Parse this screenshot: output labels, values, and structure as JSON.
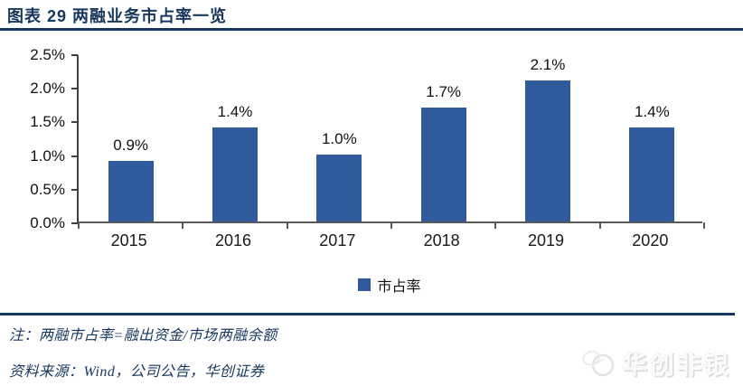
{
  "header": {
    "title": "图表 29  两融业务市占率一览"
  },
  "chart_data": {
    "type": "bar",
    "title": "图表 29  两融业务市占率一览",
    "categories": [
      "2015",
      "2016",
      "2017",
      "2018",
      "2019",
      "2020"
    ],
    "values": [
      0.9,
      1.4,
      1.0,
      1.7,
      2.1,
      1.4
    ],
    "value_labels": [
      "0.9%",
      "1.4%",
      "1.0%",
      "1.7%",
      "2.1%",
      "1.4%"
    ],
    "xlabel": "",
    "ylabel": "",
    "ylim": [
      0,
      2.5
    ],
    "yticks_top_to_bottom": [
      "2.5%",
      "2.0%",
      "1.5%",
      "1.0%",
      "0.5%",
      "0.0%"
    ],
    "grid": false,
    "legend_position": "bottom-center",
    "legend_label": "市占率",
    "bar_color": "#2f5b9c"
  },
  "footer": {
    "note": "注：两融市占率=融出资金/市场两融余额",
    "source": "资料来源：Wind，公司公告，华创证券",
    "watermark": "华创非银"
  }
}
